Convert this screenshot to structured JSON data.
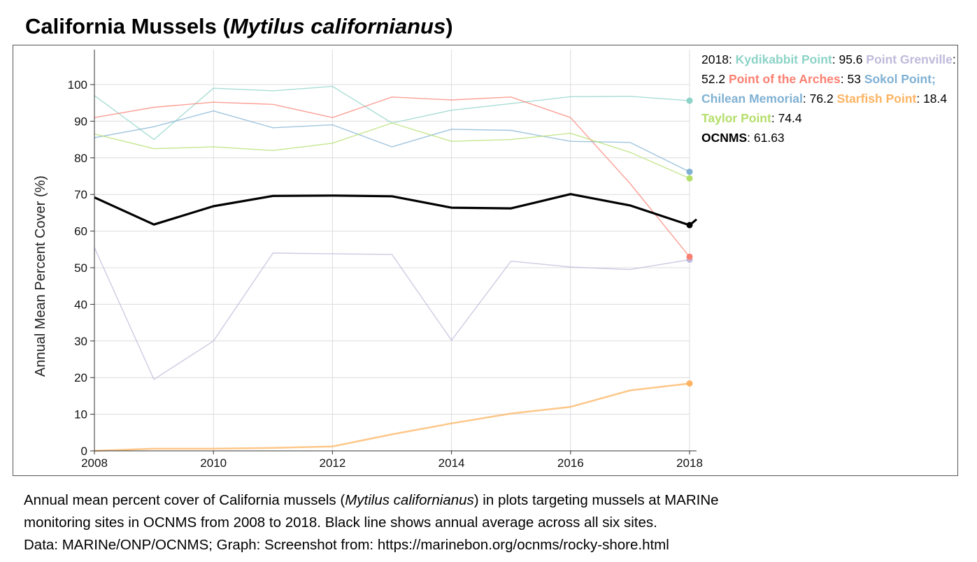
{
  "title": {
    "prefix": "California Mussels (",
    "species": "Mytilus californianus",
    "suffix": ")"
  },
  "chart_data": {
    "type": "line",
    "ylabel": "Annual Mean Percent Cover (%)",
    "xlabel": "",
    "x": [
      2008,
      2009,
      2010,
      2011,
      2012,
      2013,
      2014,
      2015,
      2016,
      2017,
      2018
    ],
    "xticks": [
      "2008",
      "2010",
      "2012",
      "2014",
      "2016",
      "2018"
    ],
    "yticks": [
      "0",
      "10",
      "20",
      "30",
      "40",
      "50",
      "60",
      "70",
      "80",
      "90",
      "100"
    ],
    "xlim": [
      2008,
      2018
    ],
    "ylim": [
      0,
      100
    ],
    "grid": true,
    "legend_position": "top-right",
    "legend_year": "2018",
    "series": [
      {
        "name": "Kydikabbit Point",
        "color": "#8dd3c7",
        "values": [
          97,
          85,
          99,
          98.3,
          99.5,
          89.5,
          93,
          94.8,
          96.7,
          96.8,
          95.6
        ]
      },
      {
        "name": "Point Grenville",
        "color": "#bebada",
        "values": [
          55.5,
          19.5,
          30,
          54,
          53.8,
          53.6,
          30.2,
          51.8,
          50.2,
          49.5,
          52.2
        ]
      },
      {
        "name": "Point of the Arches",
        "color": "#fb8072",
        "values": [
          91,
          93.8,
          95.2,
          94.6,
          91,
          96.6,
          95.8,
          96.6,
          91,
          73,
          53
        ]
      },
      {
        "name": "Sokol Point; Chilean Memorial",
        "color": "#80b1d3",
        "values": [
          85.5,
          88.5,
          92.8,
          88.2,
          89,
          83,
          87.8,
          87.5,
          84.5,
          84.2,
          76.2
        ]
      },
      {
        "name": "Starfish Point",
        "color": "#fdb462",
        "values": [
          0,
          0.6,
          0.6,
          0.8,
          1.2,
          4.5,
          7.5,
          10.2,
          12,
          16.5,
          18.4
        ]
      },
      {
        "name": "Taylor Point",
        "color": "#b3de69",
        "values": [
          86.5,
          82.5,
          83,
          82,
          84,
          89.5,
          84.5,
          85,
          86.7,
          81.5,
          74.4
        ]
      },
      {
        "name": "OCNMS",
        "color": "#000000",
        "values": [
          69.2,
          61.8,
          66.8,
          69.6,
          69.7,
          69.5,
          66.4,
          66.2,
          70.1,
          67,
          61.63
        ]
      }
    ],
    "legend_values": [
      "95.6",
      "52.2",
      "53",
      "76.2",
      "18.4",
      "74.4",
      "61.63"
    ]
  },
  "caption": {
    "line1_prefix": "Annual mean percent cover of California mussels (",
    "line1_species": "Mytilus californianus",
    "line1_suffix": ") in plots targeting mussels at MARINe",
    "line2": "monitoring sites in OCNMS from 2008 to 2018. Black line shows annual average across all six sites.",
    "line3": "Data: MARINe/ONP/OCNMS; Graph: Screenshot from: https://marinebon.org/ocnms/rocky-shore.html"
  }
}
